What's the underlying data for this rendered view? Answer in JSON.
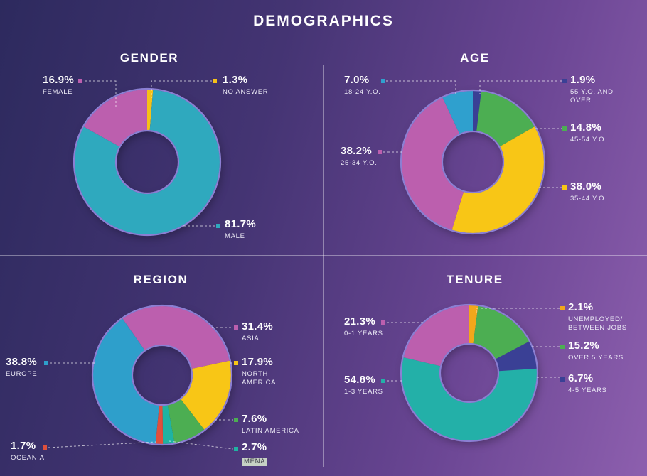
{
  "title": "DEMOGRAPHICS",
  "style": {
    "ring_outline": "#8b7fd3",
    "leader_line": "rgba(255,255,255,0.65)",
    "background_from": "#2d2a5e",
    "background_to": "#8d5fae"
  },
  "chart_data": [
    {
      "type": "donut",
      "title": "GENDER",
      "start_angle": 0,
      "legend_position": "callouts",
      "segments": [
        {
          "label": "NO ANSWER",
          "value": 1.3,
          "display": "1.3%",
          "color": "#f6c117"
        },
        {
          "label": "MALE",
          "value": 81.7,
          "display": "81.7%",
          "color": "#2fa9be"
        },
        {
          "label": "FEMALE",
          "value": 16.9,
          "display": "16.9%",
          "color": "#bc5fae"
        }
      ]
    },
    {
      "type": "donut",
      "title": "AGE",
      "start_angle": 0,
      "legend_position": "callouts",
      "segments": [
        {
          "label": "55 Y.O. AND\nOVER",
          "value": 1.9,
          "display": "1.9%",
          "color": "#3a4095"
        },
        {
          "label": "45-54 Y.O.",
          "value": 14.8,
          "display": "14.8%",
          "color": "#4cae52"
        },
        {
          "label": "35-44 Y.O.",
          "value": 38.0,
          "display": "38.0%",
          "color": "#f8c616"
        },
        {
          "label": "25-34 Y.O.",
          "value": 38.2,
          "display": "38.2%",
          "color": "#bc5fae"
        },
        {
          "label": "18-24 Y.O.",
          "value": 7.0,
          "display": "7.0%",
          "color": "#2fa0ce"
        }
      ]
    },
    {
      "type": "donut",
      "title": "REGION",
      "start_angle": 325,
      "legend_position": "callouts",
      "segments": [
        {
          "label": "ASIA",
          "value": 31.4,
          "display": "31.4%",
          "color": "#bc5fae"
        },
        {
          "label": "NORTH\nAMERICA",
          "value": 17.9,
          "display": "17.9%",
          "color": "#f8c616"
        },
        {
          "label": "LATIN AMERICA",
          "value": 7.6,
          "display": "7.6%",
          "color": "#4cae52"
        },
        {
          "label": "MENA",
          "value": 2.7,
          "display": "2.7%",
          "color": "#1fb3a2"
        },
        {
          "label": "OCEANIA",
          "value": 1.7,
          "display": "1.7%",
          "color": "#e0503c"
        },
        {
          "label": "EUROPE",
          "value": 38.8,
          "display": "38.8%",
          "color": "#2e9fcb"
        }
      ]
    },
    {
      "type": "donut",
      "title": "TENURE",
      "start_angle": 0,
      "legend_position": "callouts",
      "segments": [
        {
          "label": "UNEMPLOYED/\nBETWEEN JOBS",
          "value": 2.1,
          "display": "2.1%",
          "color": "#f2a71b"
        },
        {
          "label": "OVER 5 YEARS",
          "value": 15.2,
          "display": "15.2%",
          "color": "#4cae52"
        },
        {
          "label": "4-5 YEARS",
          "value": 6.7,
          "display": "6.7%",
          "color": "#3a4095"
        },
        {
          "label": "1-3 YEARS",
          "value": 54.8,
          "display": "54.8%",
          "color": "#23b0a8"
        },
        {
          "label": "0-1 YEARS",
          "value": 21.3,
          "display": "21.3%",
          "color": "#bc5fae"
        }
      ]
    }
  ]
}
